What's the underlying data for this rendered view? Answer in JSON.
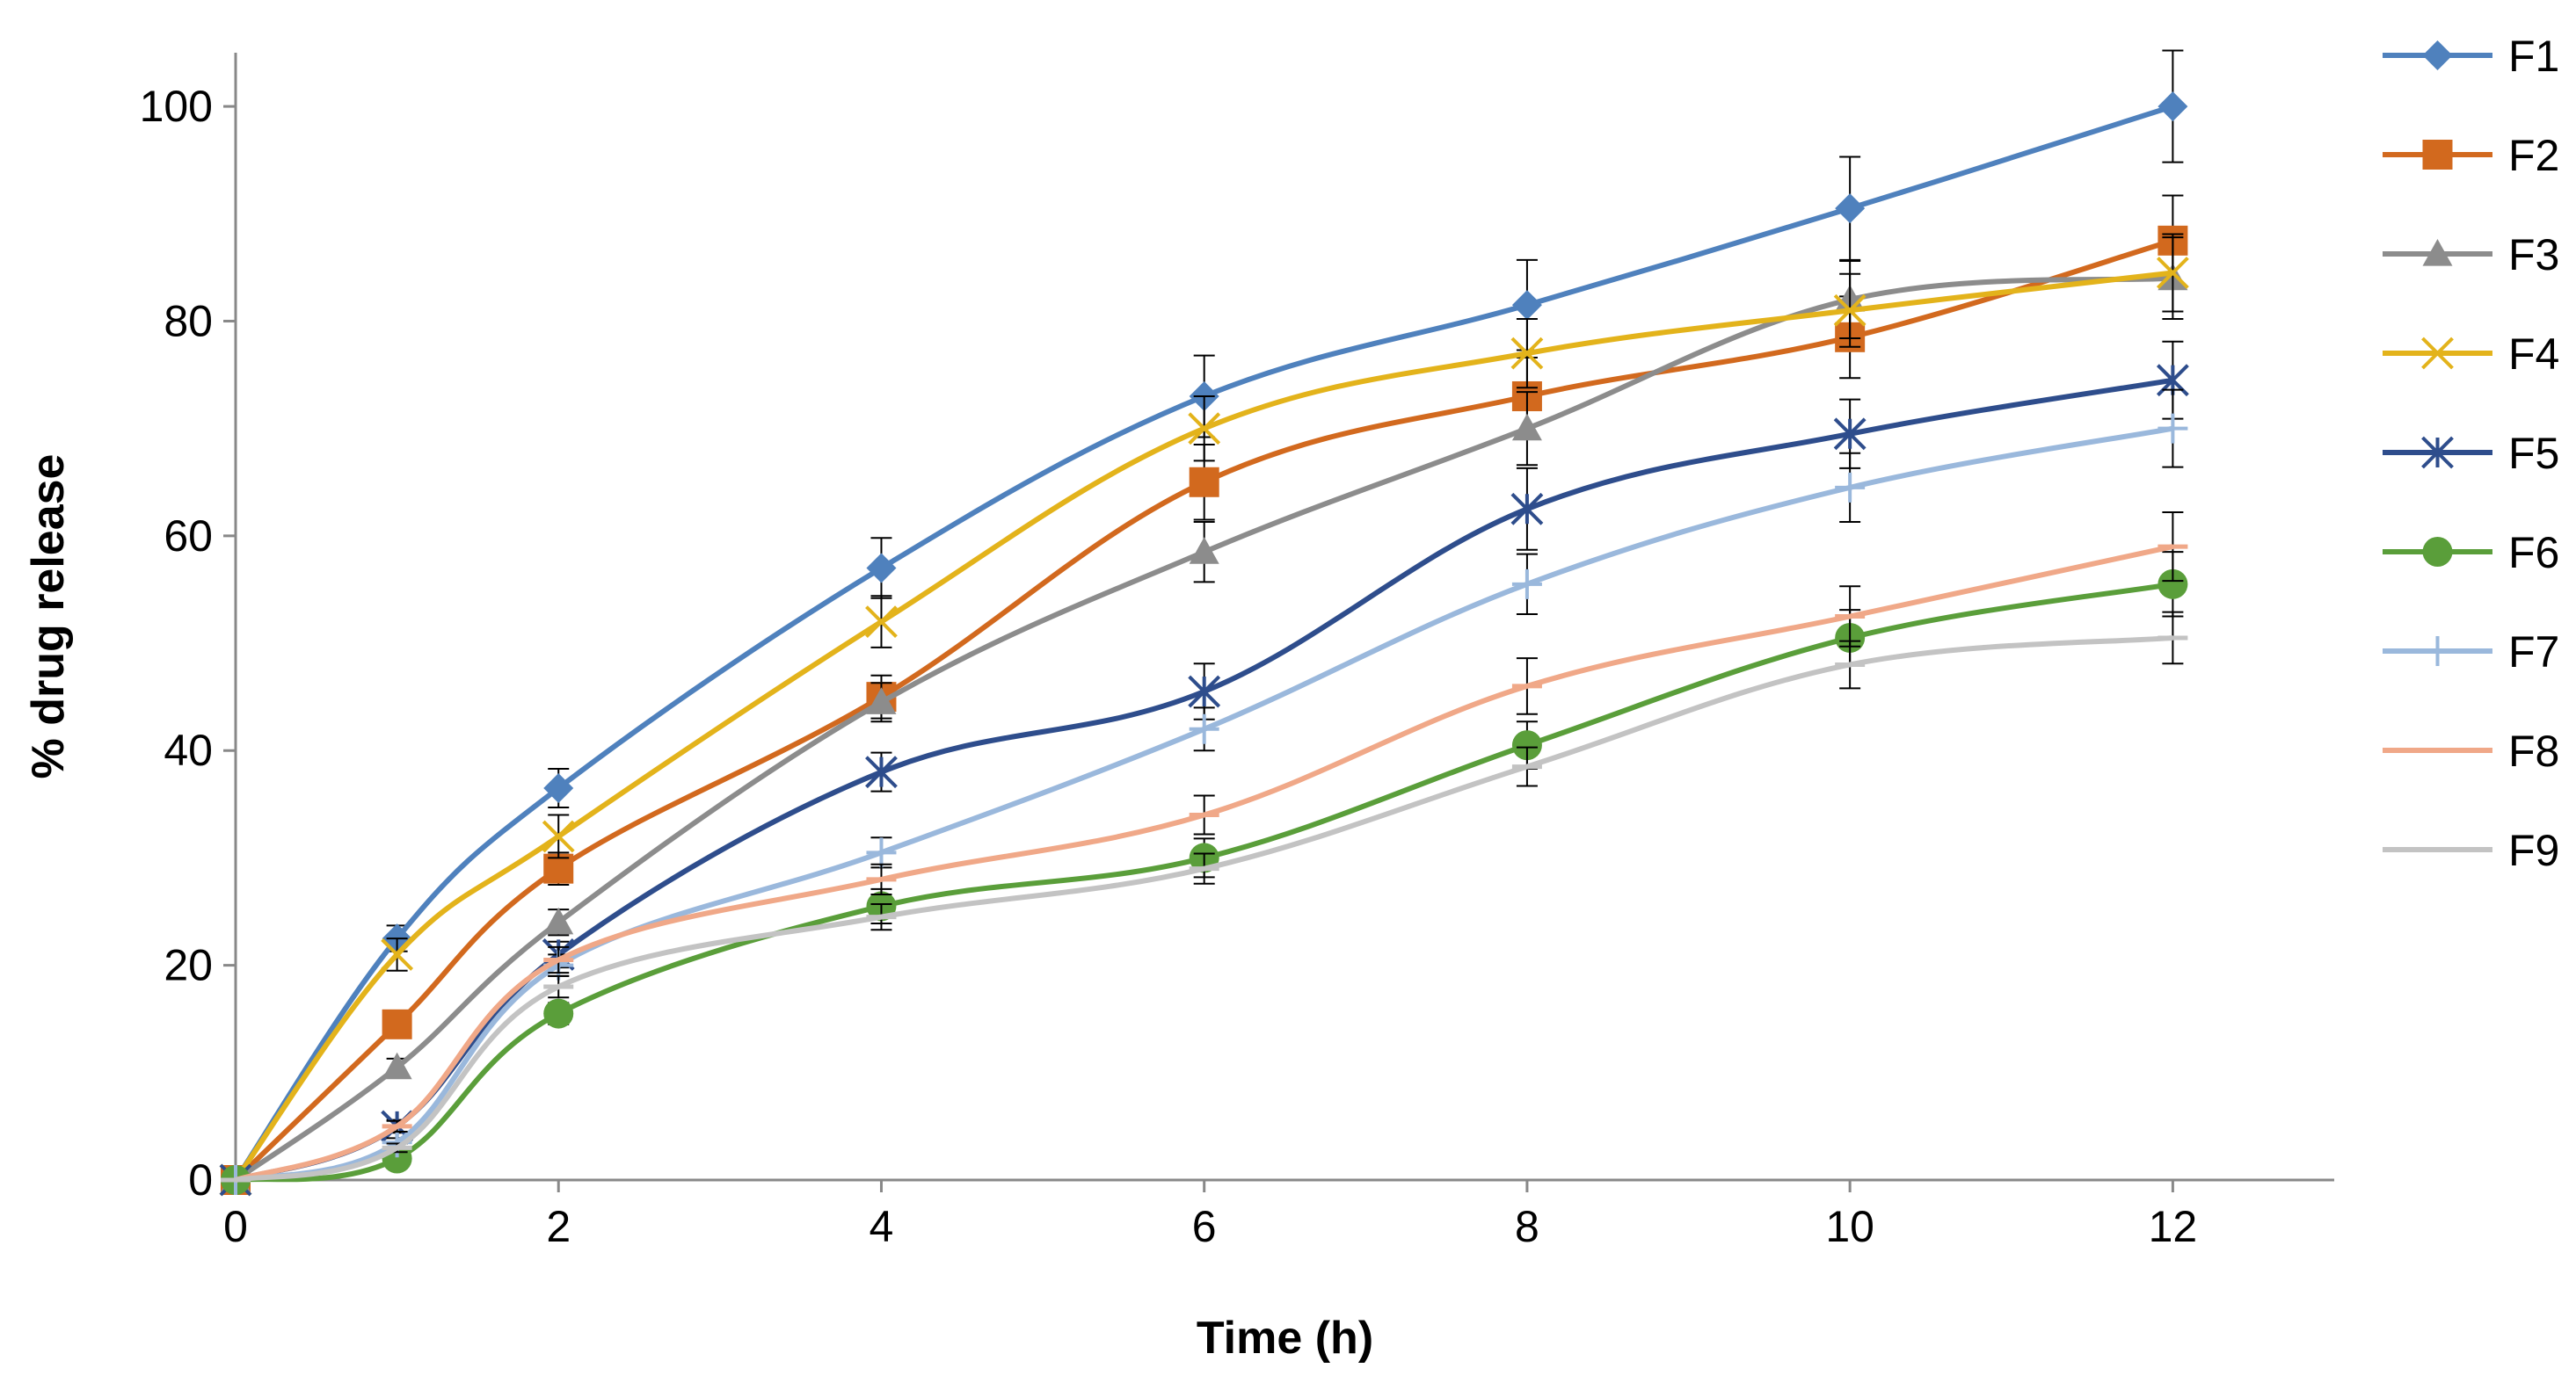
{
  "chart_data": {
    "type": "line",
    "title": "",
    "xlabel": "Time (h)",
    "ylabel": "% drug release",
    "xlim": [
      0,
      13
    ],
    "ylim": [
      0,
      105
    ],
    "xticks": [
      0,
      2,
      4,
      6,
      8,
      10,
      12
    ],
    "yticks": [
      0,
      20,
      40,
      60,
      80,
      100
    ],
    "x_tick_labels": [
      "0",
      "2",
      "4",
      "6",
      "8",
      "10",
      "12"
    ],
    "y_tick_labels": [
      "0",
      "20",
      "40",
      "60",
      "80",
      "100"
    ],
    "grid": false,
    "legend_position": "right",
    "x": [
      0,
      1,
      2,
      4,
      6,
      8,
      10,
      12
    ],
    "series": [
      {
        "name": "F1",
        "color": "#4f81bd",
        "marker": "diamond",
        "values": [
          0,
          22.5,
          36.5,
          57,
          73,
          81.5,
          90.5,
          100
        ],
        "errors": [
          0,
          1.2,
          1.8,
          2.8,
          3.8,
          4.2,
          4.8,
          5.2
        ]
      },
      {
        "name": "F2",
        "color": "#d2691e",
        "marker": "square",
        "values": [
          0,
          14.5,
          29,
          45,
          65,
          73,
          78.5,
          87.5
        ],
        "errors": [
          0,
          1.0,
          1.5,
          2.0,
          3.5,
          3.6,
          3.8,
          4.2
        ]
      },
      {
        "name": "F3",
        "color": "#8c8c8c",
        "marker": "triangle",
        "values": [
          0,
          10.5,
          24,
          44.5,
          58.5,
          70,
          82,
          84
        ],
        "errors": [
          0,
          0.8,
          1.2,
          1.8,
          2.8,
          3.4,
          3.6,
          3.8
        ]
      },
      {
        "name": "F4",
        "color": "#e3b31b",
        "marker": "x",
        "values": [
          0,
          21,
          32,
          52,
          70,
          77,
          81,
          84.5
        ],
        "errors": [
          0,
          1.5,
          2.0,
          2.4,
          3.0,
          3.2,
          3.4,
          3.6
        ]
      },
      {
        "name": "F5",
        "color": "#2e4d8c",
        "marker": "star",
        "values": [
          0,
          5,
          21,
          38,
          45.5,
          62.5,
          69.5,
          74.5
        ],
        "errors": [
          0,
          0.6,
          1.2,
          1.8,
          2.6,
          3.8,
          3.2,
          3.6
        ]
      },
      {
        "name": "F6",
        "color": "#5a9e3a",
        "marker": "circle",
        "values": [
          0,
          2,
          15.5,
          25.5,
          30,
          40.5,
          50.5,
          55.5
        ],
        "errors": [
          0,
          0.3,
          1.0,
          1.6,
          1.8,
          2.2,
          2.6,
          3.0
        ]
      },
      {
        "name": "F7",
        "color": "#9ab8dc",
        "marker": "plus",
        "values": [
          0,
          3.5,
          20,
          30.5,
          42,
          55.5,
          64.5,
          70
        ],
        "errors": [
          0,
          0.4,
          1.0,
          1.4,
          2.0,
          2.8,
          3.2,
          3.6
        ]
      },
      {
        "name": "F8",
        "color": "#f0a888",
        "marker": "dash",
        "values": [
          0,
          5,
          20.5,
          28,
          34,
          46,
          52.5,
          59
        ],
        "errors": [
          0,
          0.5,
          1.2,
          1.4,
          1.8,
          2.6,
          2.8,
          3.2
        ]
      },
      {
        "name": "F9",
        "color": "#c3c3c3",
        "marker": "dash",
        "values": [
          0,
          3,
          18,
          24.5,
          29,
          38.5,
          48,
          50.5
        ],
        "errors": [
          0,
          0.4,
          1.0,
          1.2,
          1.4,
          1.8,
          2.2,
          2.4
        ]
      }
    ]
  }
}
